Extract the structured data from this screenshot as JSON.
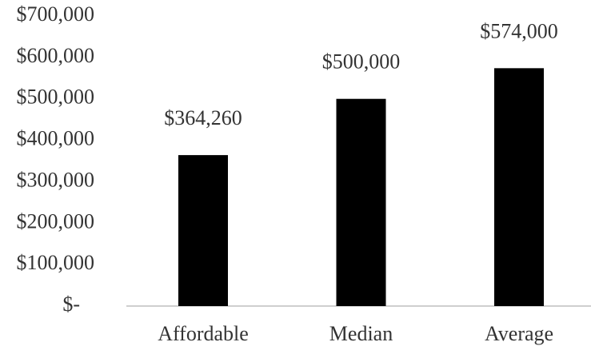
{
  "chart_data": {
    "type": "bar",
    "categories": [
      "Affordable",
      "Median",
      "Average"
    ],
    "values": [
      364260,
      500000,
      574000
    ],
    "value_labels": [
      "$364,260",
      "$500,000",
      "$574,000"
    ],
    "color": "#000000",
    "ylim": [
      0,
      700000
    ],
    "yticks": [
      {
        "value": 700000,
        "label": "$700,000"
      },
      {
        "value": 600000,
        "label": "$600,000"
      },
      {
        "value": 500000,
        "label": "$500,000"
      },
      {
        "value": 400000,
        "label": "$400,000"
      },
      {
        "value": 300000,
        "label": "$300,000"
      },
      {
        "value": 200000,
        "label": "$200,000"
      },
      {
        "value": 100000,
        "label": "$100,000"
      },
      {
        "value": 0,
        "label": "$-"
      }
    ],
    "grid": false
  }
}
